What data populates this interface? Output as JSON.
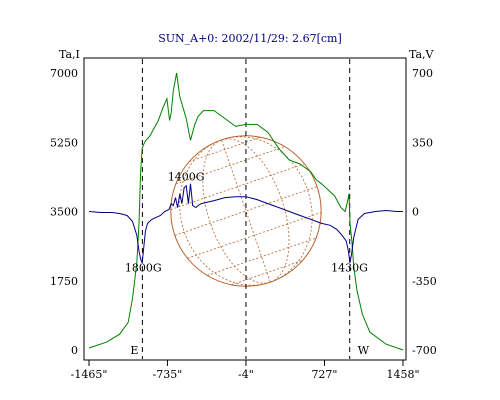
{
  "chart_data": {
    "type": "line",
    "title": "SUN_A+0: 2002/11/29: 2.67[cm]",
    "left_axis_label": "Ta,I",
    "right_axis_label": "Ta,V",
    "x_tick_labels": [
      "-1465\"",
      "-735\"",
      "-4\"",
      "727\"",
      "1458\""
    ],
    "x_ticks": [
      -1465,
      -735,
      -4,
      727,
      1458
    ],
    "xlim": [
      -1465,
      1458
    ],
    "left_tick_labels": [
      "0",
      "1750",
      "3500",
      "5250",
      "7000"
    ],
    "left_ticks": [
      0,
      1750,
      3500,
      5250,
      7000
    ],
    "left_ylim": [
      0,
      7000
    ],
    "right_tick_labels": [
      "-700",
      "-350",
      "0",
      "350",
      "700"
    ],
    "right_ticks": [
      -700,
      -350,
      0,
      350,
      700
    ],
    "right_ylim": [
      -700,
      700
    ],
    "limb_markers": [
      -968,
      -4,
      962
    ],
    "direction_labels": {
      "east": "E",
      "west": "W"
    },
    "solar_disk": {
      "center_x": -4,
      "radius_arcsec": 700
    },
    "annotations": [
      {
        "text": "1400G",
        "x": -560,
        "y_left": 4280
      },
      {
        "text": "1800G",
        "x": -960,
        "y_left": 1980
      },
      {
        "text": "1430G",
        "x": 960,
        "y_left": 1980
      }
    ],
    "series": [
      {
        "name": "Ta,I",
        "axis": "left",
        "color": "#008000",
        "x": [
          -1465,
          -1300,
          -1180,
          -1100,
          -1060,
          -1020,
          -1000,
          -985,
          -970,
          -955,
          -935,
          -900,
          -860,
          -820,
          -780,
          -740,
          -715,
          -700,
          -680,
          -650,
          -620,
          -560,
          -520,
          -480,
          -450,
          -400,
          -300,
          -200,
          -100,
          -4,
          100,
          200,
          300,
          400,
          500,
          600,
          650,
          700,
          760,
          820,
          880,
          920,
          945,
          955,
          965,
          980,
          1000,
          1030,
          1080,
          1150,
          1300,
          1458
        ],
        "y": [
          50,
          200,
          400,
          700,
          1300,
          2200,
          3200,
          4500,
          5100,
          5200,
          5300,
          5400,
          5600,
          5800,
          6100,
          6350,
          5800,
          6000,
          6550,
          7000,
          6400,
          5850,
          5300,
          5700,
          5900,
          6050,
          6050,
          5850,
          5650,
          5700,
          5700,
          5500,
          5100,
          4800,
          4700,
          4500,
          4300,
          4200,
          4050,
          3900,
          3600,
          3500,
          3800,
          3950,
          3200,
          2800,
          2100,
          1500,
          900,
          450,
          150,
          0
        ]
      },
      {
        "name": "Ta,V",
        "axis": "right",
        "color": "#000080",
        "x": [
          -1465,
          -1350,
          -1250,
          -1180,
          -1110,
          -1060,
          -1020,
          -1000,
          -985,
          -970,
          -955,
          -940,
          -920,
          -880,
          -840,
          -800,
          -760,
          -720,
          -700,
          -680,
          -660,
          -640,
          -620,
          -600,
          -580,
          -560,
          -540,
          -520,
          -500,
          -470,
          -450,
          -420,
          -380,
          -300,
          -200,
          -100,
          -4,
          100,
          200,
          300,
          400,
          500,
          600,
          700,
          780,
          840,
          890,
          930,
          950,
          965,
          980,
          1000,
          1040,
          1100,
          1200,
          1300,
          1400,
          1458
        ],
        "y": [
          0,
          -5,
          -5,
          -10,
          -20,
          -50,
          -120,
          -200,
          -240,
          -260,
          -180,
          -100,
          -60,
          -40,
          -30,
          -20,
          0,
          10,
          40,
          30,
          70,
          20,
          90,
          40,
          120,
          130,
          40,
          140,
          30,
          20,
          30,
          40,
          45,
          55,
          70,
          75,
          75,
          60,
          40,
          20,
          0,
          -20,
          -40,
          -60,
          -70,
          -90,
          -120,
          -150,
          -200,
          -260,
          -210,
          -130,
          -40,
          -10,
          0,
          5,
          0,
          0
        ]
      }
    ]
  }
}
